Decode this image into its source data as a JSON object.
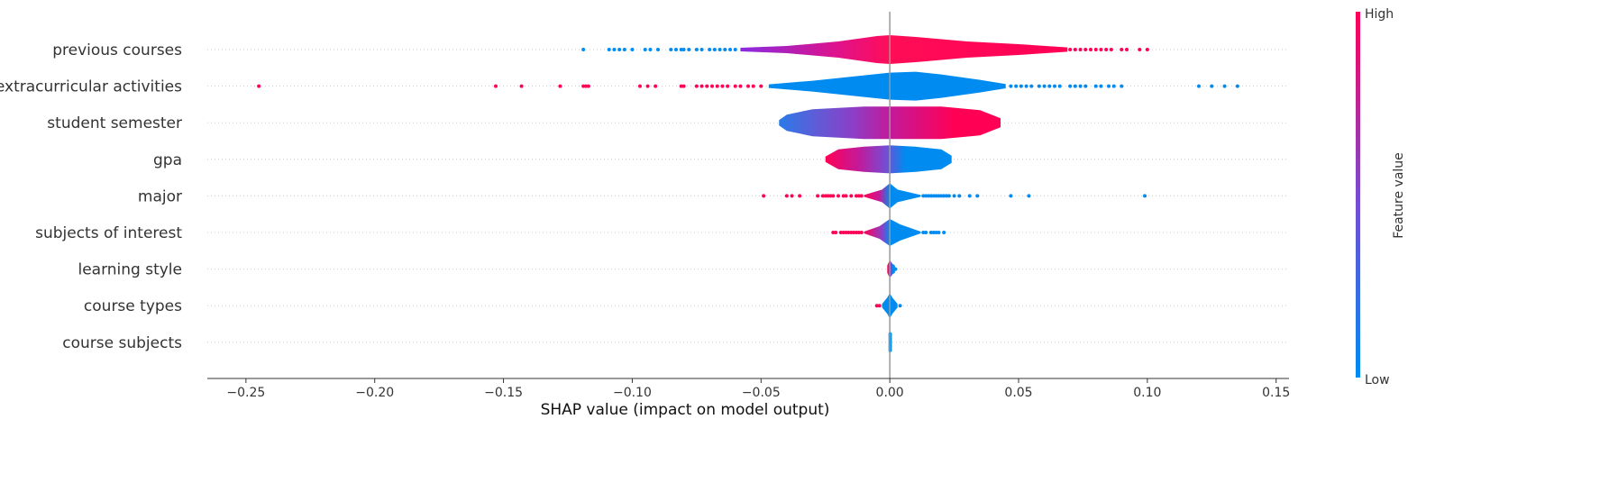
{
  "chart_data": {
    "type": "scatter",
    "subtype": "shap-violin-summary",
    "xlabel": "SHAP value (impact on model output)",
    "xlim": [
      -0.265,
      0.155
    ],
    "xticks": [
      -0.25,
      -0.2,
      -0.15,
      -0.1,
      -0.05,
      0.0,
      0.05,
      0.1,
      0.15
    ],
    "xtick_labels": [
      "−0.25",
      "−0.20",
      "−0.15",
      "−0.10",
      "−0.05",
      "0.00",
      "0.05",
      "0.10",
      "0.15"
    ],
    "features": [
      "previous courses",
      "extracurricular activities",
      "student semester",
      "gpa",
      "major",
      "subjects of interest",
      "learning style",
      "course types",
      "course subjects"
    ],
    "violins": [
      {
        "feature": "previous courses",
        "min": -0.058,
        "max": 0.069,
        "shape": [
          [
            -0.058,
            0.1
          ],
          [
            -0.04,
            0.2
          ],
          [
            -0.02,
            0.45
          ],
          [
            -0.005,
            0.75
          ],
          [
            0.0,
            0.8
          ],
          [
            0.01,
            0.7
          ],
          [
            0.03,
            0.45
          ],
          [
            0.05,
            0.3
          ],
          [
            0.069,
            0.12
          ]
        ],
        "colors": [
          [
            -0.058,
            "#8a2be2"
          ],
          [
            -0.04,
            "#b01fb6"
          ],
          [
            -0.02,
            "#e0128a"
          ],
          [
            0.0,
            "#ff0d57"
          ],
          [
            0.069,
            "#ff0055"
          ]
        ],
        "outliers_low": [
          -0.119,
          -0.109,
          -0.107,
          -0.105,
          -0.103,
          -0.1,
          -0.095,
          -0.093,
          -0.09,
          -0.085,
          -0.083,
          -0.081,
          -0.08,
          -0.078,
          -0.075,
          -0.073,
          -0.07,
          -0.068,
          -0.066,
          -0.064,
          -0.062,
          -0.06
        ],
        "outliers_high": [
          0.07,
          0.072,
          0.074,
          0.076,
          0.078,
          0.08,
          0.082,
          0.084,
          0.086,
          0.09,
          0.092,
          0.097,
          0.1
        ]
      },
      {
        "feature": "extracurricular activities",
        "min": -0.047,
        "max": 0.045,
        "shape": [
          [
            -0.047,
            0.1
          ],
          [
            -0.03,
            0.3
          ],
          [
            -0.01,
            0.6
          ],
          [
            0.0,
            0.75
          ],
          [
            0.01,
            0.8
          ],
          [
            0.02,
            0.65
          ],
          [
            0.035,
            0.35
          ],
          [
            0.045,
            0.12
          ]
        ],
        "colors": [
          [
            -0.047,
            "#008bf0"
          ],
          [
            0.045,
            "#008bf0"
          ]
        ],
        "outliers_low": [
          -0.245,
          -0.153,
          -0.143,
          -0.128,
          -0.119,
          -0.118,
          -0.117,
          -0.097,
          -0.094,
          -0.091,
          -0.081,
          -0.08,
          -0.075,
          -0.073,
          -0.071,
          -0.069,
          -0.067,
          -0.065,
          -0.063,
          -0.06,
          -0.058,
          -0.055,
          -0.053,
          -0.05
        ],
        "outliers_high": [
          0.047,
          0.049,
          0.051,
          0.053,
          0.055,
          0.058,
          0.06,
          0.062,
          0.064,
          0.066,
          0.07,
          0.072,
          0.074,
          0.076,
          0.08,
          0.082,
          0.085,
          0.087,
          0.09,
          0.12,
          0.125,
          0.13,
          0.135
        ]
      },
      {
        "feature": "student semester",
        "min": -0.043,
        "max": 0.043,
        "shape": [
          [
            -0.043,
            0.15
          ],
          [
            -0.04,
            0.45
          ],
          [
            -0.03,
            0.75
          ],
          [
            -0.01,
            0.9
          ],
          [
            0.0,
            0.9
          ],
          [
            0.02,
            0.9
          ],
          [
            0.035,
            0.7
          ],
          [
            0.043,
            0.25
          ]
        ],
        "colors": [
          [
            -0.043,
            "#2a7be8"
          ],
          [
            -0.03,
            "#5a5fd8"
          ],
          [
            -0.015,
            "#8a40c8"
          ],
          [
            0.0,
            "#c21a9a"
          ],
          [
            0.025,
            "#ff0055"
          ],
          [
            0.043,
            "#ff0055"
          ]
        ],
        "outliers_low": [],
        "outliers_high": []
      },
      {
        "feature": "gpa",
        "min": -0.025,
        "max": 0.024,
        "shape": [
          [
            -0.025,
            0.15
          ],
          [
            -0.02,
            0.55
          ],
          [
            -0.01,
            0.7
          ],
          [
            0.0,
            0.78
          ],
          [
            0.01,
            0.7
          ],
          [
            0.02,
            0.55
          ],
          [
            0.024,
            0.2
          ]
        ],
        "colors": [
          [
            -0.025,
            "#ff0055"
          ],
          [
            -0.012,
            "#c21a9a"
          ],
          [
            -0.002,
            "#7a4ad0"
          ],
          [
            0.006,
            "#008bf0"
          ],
          [
            0.024,
            "#008bf0"
          ]
        ],
        "outliers_low": [],
        "outliers_high": []
      },
      {
        "feature": "major",
        "min": -0.01,
        "max": 0.012,
        "shape": [
          [
            -0.01,
            0.05
          ],
          [
            -0.003,
            0.35
          ],
          [
            0.0,
            0.7
          ],
          [
            0.003,
            0.35
          ],
          [
            0.012,
            0.05
          ]
        ],
        "colors": [
          [
            -0.01,
            "#ff0055"
          ],
          [
            -0.004,
            "#c21a9a"
          ],
          [
            0.0,
            "#008bf0"
          ],
          [
            0.012,
            "#008bf0"
          ]
        ],
        "outliers_low": [
          -0.049,
          -0.04,
          -0.038,
          -0.035,
          -0.028,
          -0.026,
          -0.025,
          -0.024,
          -0.023,
          -0.022,
          -0.02,
          -0.018,
          -0.017,
          -0.015,
          -0.013,
          -0.012,
          -0.011
        ],
        "outliers_high": [
          0.013,
          0.014,
          0.015,
          0.016,
          0.017,
          0.018,
          0.019,
          0.02,
          0.021,
          0.022,
          0.023,
          0.025,
          0.027,
          0.031,
          0.034,
          0.047,
          0.054,
          0.099
        ]
      },
      {
        "feature": "subjects of interest",
        "min": -0.01,
        "max": 0.012,
        "shape": [
          [
            -0.01,
            0.05
          ],
          [
            -0.004,
            0.35
          ],
          [
            0.0,
            0.75
          ],
          [
            0.004,
            0.45
          ],
          [
            0.012,
            0.05
          ]
        ],
        "colors": [
          [
            -0.01,
            "#ff0055"
          ],
          [
            -0.003,
            "#8a40c8"
          ],
          [
            0.0,
            "#008bf0"
          ],
          [
            0.012,
            "#008bf0"
          ]
        ],
        "outliers_low": [
          -0.022,
          -0.021,
          -0.019,
          -0.018,
          -0.017,
          -0.016,
          -0.015,
          -0.014,
          -0.013,
          -0.012,
          -0.011
        ],
        "outliers_high": [
          0.013,
          0.014,
          0.016,
          0.017,
          0.018,
          0.019,
          0.021
        ]
      },
      {
        "feature": "learning style",
        "min": -0.001,
        "max": 0.002,
        "shape": [
          [
            -0.001,
            0.2
          ],
          [
            0.0,
            0.5
          ],
          [
            0.001,
            0.3
          ],
          [
            0.002,
            0.2
          ]
        ],
        "colors": [
          [
            -0.001,
            "#ff0055"
          ],
          [
            0.0,
            "#c21a9a"
          ],
          [
            0.001,
            "#008bf0"
          ],
          [
            0.002,
            "#008bf0"
          ]
        ],
        "outliers_low": [],
        "outliers_high": [
          0.002,
          0.0022
        ]
      },
      {
        "feature": "course types",
        "min": -0.003,
        "max": 0.003,
        "shape": [
          [
            -0.003,
            0.1
          ],
          [
            -0.001,
            0.45
          ],
          [
            0.0,
            0.7
          ],
          [
            0.001,
            0.45
          ],
          [
            0.003,
            0.1
          ]
        ],
        "colors": [
          [
            -0.003,
            "#008bf0"
          ],
          [
            0.003,
            "#008bf0"
          ]
        ],
        "outliers_low": [
          -0.005,
          -0.004
        ],
        "outliers_high": [
          0.004
        ]
      },
      {
        "feature": "course subjects",
        "min": -0.0005,
        "max": 0.0008,
        "shape": [
          [
            -0.0005,
            0.5
          ],
          [
            0.0,
            0.6
          ],
          [
            0.0008,
            0.5
          ]
        ],
        "colors": [
          [
            -0.0005,
            "#008bf0"
          ],
          [
            0.0008,
            "#008bf0"
          ]
        ],
        "outliers_low": [],
        "outliers_high": []
      }
    ],
    "colorbar": {
      "title": "Feature value",
      "high_label": "High",
      "low_label": "Low",
      "low_color": "#008bf0",
      "high_color": "#ff0055"
    },
    "colors": {
      "positive": "#ff0055",
      "negative": "#008bf0",
      "zero_line": "#999999"
    }
  }
}
